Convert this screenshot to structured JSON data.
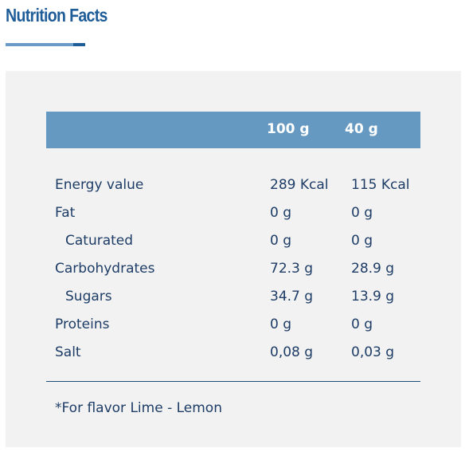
{
  "header": {
    "title": "Nutrition Facts"
  },
  "table": {
    "columns": [
      "100 g",
      "40 g"
    ],
    "rows": [
      [
        "Energy value",
        "289 Kcal",
        "115 Kcal"
      ],
      [
        "Fat",
        "0 g",
        "0 g"
      ],
      [
        "Caturated",
        "0 g",
        "0 g"
      ],
      [
        "Carbohydrates",
        "72.3 g",
        "28.9 g"
      ],
      [
        "Sugars",
        "34.7 g",
        "13.9 g"
      ],
      [
        "Proteins",
        "0 g",
        "0 g"
      ],
      [
        "Salt",
        "0,08 g",
        "0,03 g"
      ]
    ]
  },
  "footnote": "*For flavor Lime - Lemon"
}
